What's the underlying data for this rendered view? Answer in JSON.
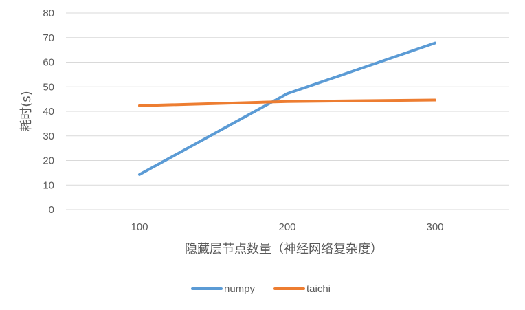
{
  "chart_data": {
    "type": "line",
    "categories": [
      "100",
      "200",
      "300"
    ],
    "series": [
      {
        "name": "numpy",
        "color": "#5B9BD5",
        "values": [
          14.3,
          47.2,
          67.8
        ]
      },
      {
        "name": "taichi",
        "color": "#ED7D31",
        "values": [
          42.3,
          44.0,
          44.6
        ]
      }
    ],
    "xlabel": "隐藏层节点数量（神经网络复杂度）",
    "ylabel": "耗时(s)",
    "ylim": [
      0,
      80
    ],
    "yticks": [
      0,
      10,
      20,
      30,
      40,
      50,
      60,
      70,
      80
    ],
    "grid": true,
    "legend": "bottom",
    "gridline_color": "#D9D9D9"
  }
}
